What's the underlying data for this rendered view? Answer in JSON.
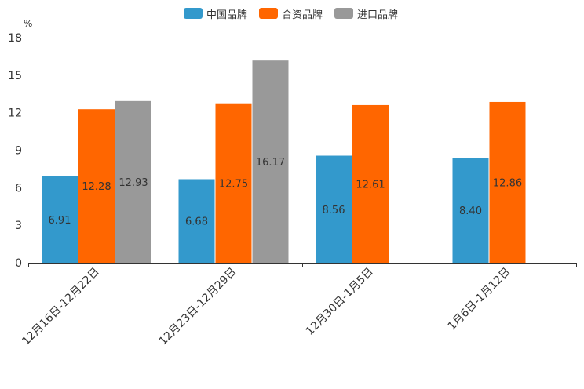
{
  "chart_data": {
    "type": "bar",
    "unit": "%",
    "categories": [
      "12月16日-12月22日",
      "12月23日-12月29日",
      "12月30日-1月5日",
      "1月6日-1月12日"
    ],
    "series": [
      {
        "name": "中国品牌",
        "color": "#3399cc",
        "values": [
          6.91,
          6.68,
          8.56,
          8.4
        ],
        "labels": [
          "6.91",
          "6.68",
          "8.56",
          "8.40"
        ]
      },
      {
        "name": "合资品牌",
        "color": "#ff6600",
        "values": [
          12.28,
          12.75,
          12.61,
          12.86
        ],
        "labels": [
          "12.28",
          "12.75",
          "12.61",
          "12.86"
        ]
      },
      {
        "name": "进口品牌",
        "color": "#999999",
        "values": [
          12.93,
          16.17,
          null,
          null
        ],
        "labels": [
          "12.93",
          "16.17",
          null,
          null
        ]
      }
    ],
    "yticks": [
      "0",
      "3",
      "6",
      "9",
      "12",
      "15",
      "18"
    ],
    "ylim": [
      0,
      18
    ],
    "title": "",
    "xlabel": "",
    "ylabel": "%",
    "legend_position": "top-center"
  }
}
